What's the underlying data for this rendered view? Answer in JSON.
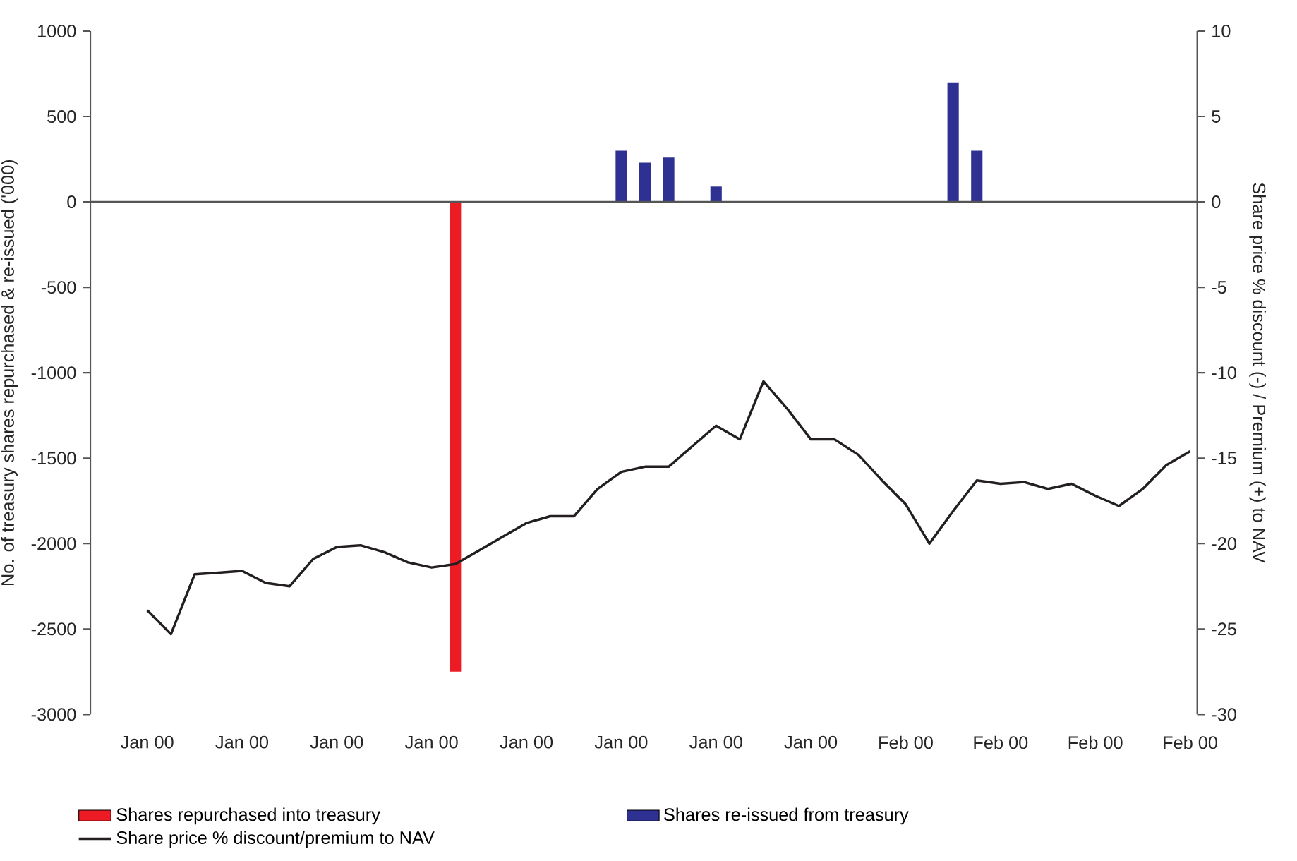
{
  "chart_data": {
    "type": "bar",
    "ylabel": "No. of treasury shares repurchased & re-issued ('000)",
    "y2label": "Share price % discount (-) / Premium (+) to NAV",
    "categories": [
      "Jan 00",
      null,
      null,
      null,
      "Jan 00",
      null,
      null,
      null,
      "Jan 00",
      null,
      null,
      null,
      "Jan 00",
      null,
      null,
      null,
      "Jan 00",
      null,
      null,
      null,
      "Jan 00",
      null,
      null,
      null,
      "Jan 00",
      null,
      null,
      null,
      "Jan 00",
      null,
      null,
      null,
      "Feb 00",
      null,
      null,
      null,
      "Feb 00",
      null,
      null,
      null,
      "Feb 00",
      null,
      null,
      null,
      "Feb 00"
    ],
    "ylim": [
      -3000,
      1000
    ],
    "yticks": [
      -3000,
      -2500,
      -2000,
      -1500,
      -1000,
      -500,
      0,
      500,
      1000
    ],
    "y2lim": [
      -30,
      10
    ],
    "y2ticks": [
      -30,
      -25,
      -20,
      -15,
      -10,
      -5,
      0,
      5,
      10
    ],
    "legend": "bottom",
    "series": [
      {
        "name": "Shares repurchased into treasury",
        "color": "#ed1c24",
        "values": [
          null,
          null,
          null,
          null,
          null,
          null,
          null,
          null,
          null,
          null,
          null,
          null,
          null,
          -2750,
          null,
          null,
          null,
          null,
          null,
          null,
          null,
          null,
          null,
          null,
          null,
          null,
          null,
          null,
          null,
          null,
          null,
          null,
          null,
          null,
          null,
          null,
          null,
          null,
          null,
          null,
          null,
          null,
          null,
          null,
          null
        ]
      },
      {
        "name": "Shares re-issued from treasury",
        "color": "#2e3192",
        "values": [
          null,
          null,
          null,
          null,
          null,
          null,
          null,
          null,
          null,
          null,
          null,
          null,
          null,
          null,
          null,
          null,
          null,
          null,
          null,
          null,
          300,
          230,
          260,
          null,
          90,
          null,
          null,
          null,
          null,
          null,
          null,
          null,
          null,
          null,
          700,
          300,
          null,
          null,
          null,
          null,
          null,
          null,
          null,
          null,
          null
        ]
      },
      {
        "name": "Share price % discount/premium to NAV",
        "type": "line",
        "axis": "y2",
        "color": "#231f20",
        "values": [
          -23.9,
          -25.3,
          -21.8,
          -21.7,
          -21.6,
          -22.3,
          -22.5,
          -20.9,
          -20.2,
          -20.1,
          -20.5,
          -21.1,
          -21.4,
          -21.2,
          -20.4,
          -19.6,
          -18.8,
          -18.4,
          -18.4,
          -16.8,
          -15.8,
          -15.5,
          -15.5,
          -14.3,
          -13.1,
          -13.9,
          -10.5,
          -12.1,
          -13.9,
          -13.9,
          -14.8,
          -16.3,
          -17.7,
          -20.0,
          -18.1,
          -16.3,
          -16.5,
          -16.4,
          -16.8,
          -16.5,
          -17.2,
          -17.8,
          -16.8,
          -15.4,
          -14.6
        ]
      }
    ]
  }
}
